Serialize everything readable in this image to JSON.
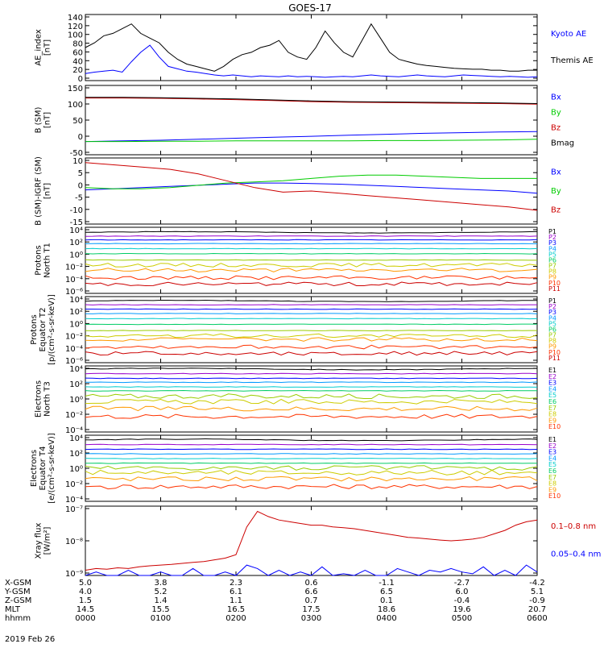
{
  "title": "GOES-17",
  "date_label": "2019 Feb 26",
  "colors": {
    "blue": "#0000ff",
    "black": "#000000",
    "green": "#00cc00",
    "red": "#cc0000",
    "P": [
      "#000000",
      "#9900cc",
      "#0000ff",
      "#0099ff",
      "#00cccc",
      "#00cc66",
      "#99cc00",
      "#cccc00",
      "#ff9900",
      "#ff3300",
      "#cc0000"
    ],
    "E": [
      "#000000",
      "#9900cc",
      "#0000ff",
      "#0099ff",
      "#00cccc",
      "#00cc66",
      "#99cc00",
      "#cccc00",
      "#ff9900",
      "#ff3300"
    ]
  },
  "chart_data": [
    {
      "type": "line",
      "id": "ae",
      "ylabel": [
        "AE_index",
        "[nT]"
      ],
      "ylim": [
        0,
        140
      ],
      "yticks": [
        "140",
        "120",
        "100",
        "80",
        "60",
        "40",
        "20",
        "0"
      ],
      "legend": [
        "Kyoto AE",
        "Themis AE"
      ],
      "series": [
        {
          "name": "Kyoto AE",
          "color": "#0000ff",
          "values": [
            15,
            18,
            20,
            22,
            18,
            40,
            60,
            75,
            50,
            30,
            25,
            20,
            18,
            15,
            12,
            10,
            12,
            10,
            8,
            10,
            9,
            8,
            10,
            8,
            9,
            8,
            7,
            8,
            9,
            8,
            10,
            12,
            10,
            9,
            8,
            10,
            12,
            10,
            9,
            8,
            10,
            12,
            11,
            10,
            9,
            8,
            9,
            8,
            7,
            8
          ]
        },
        {
          "name": "Themis AE",
          "color": "#000000",
          "values": [
            70,
            80,
            95,
            100,
            110,
            120,
            100,
            90,
            80,
            60,
            45,
            35,
            30,
            25,
            20,
            30,
            45,
            55,
            60,
            70,
            75,
            85,
            60,
            50,
            45,
            70,
            105,
            80,
            60,
            50,
            85,
            120,
            90,
            60,
            45,
            40,
            35,
            32,
            30,
            28,
            26,
            25,
            24,
            24,
            22,
            22,
            20,
            20,
            22,
            22
          ]
        }
      ]
    },
    {
      "type": "line",
      "id": "bsm",
      "ylabel": [
        "B (SM)",
        "[nT]"
      ],
      "ylim": [
        -60,
        150
      ],
      "yticks": [
        "150",
        "100",
        "50",
        "0",
        "-50"
      ],
      "legend": [
        "Bx",
        "By",
        "Bz",
        "Bmag"
      ],
      "series": [
        {
          "name": "Bx",
          "color": "#0000ff",
          "values": [
            -20,
            -18,
            -16,
            -13,
            -10,
            -7,
            -4,
            -1,
            2,
            5,
            7,
            9,
            10
          ]
        },
        {
          "name": "By",
          "color": "#00cc00",
          "values": [
            -20,
            -20,
            -19,
            -19,
            -18,
            -18,
            -18,
            -18,
            -17,
            -17,
            -16,
            -15,
            -13
          ]
        },
        {
          "name": "Bz",
          "color": "#cc0000",
          "values": [
            112,
            112,
            111,
            109,
            107,
            104,
            101,
            99,
            98,
            97,
            96,
            95,
            93
          ]
        },
        {
          "name": "Bmag",
          "color": "#000000",
          "values": [
            114,
            114,
            113,
            111,
            109,
            106,
            103,
            101,
            100,
            99,
            98,
            97,
            95
          ]
        }
      ]
    },
    {
      "type": "line",
      "id": "bigrf",
      "ylabel": [
        "B (SM)-IGRF (SM)",
        "[nT]"
      ],
      "ylim": [
        -17,
        12
      ],
      "yticks": [
        "10",
        "5",
        "0",
        "-5",
        "-10",
        "-15"
      ],
      "legend": [
        "Bx",
        "By",
        "Bz"
      ],
      "series": [
        {
          "name": "Bx",
          "color": "#0000ff",
          "values": [
            -2,
            -1.5,
            -1,
            -0.5,
            0,
            0.5,
            1,
            1,
            0.8,
            0.5,
            0,
            -0.5,
            -1,
            -1.5,
            -2,
            -2.5,
            -3.5
          ]
        },
        {
          "name": "By",
          "color": "#00cc00",
          "values": [
            -1,
            -1.5,
            -1.5,
            -1,
            0,
            1,
            1.5,
            2,
            3,
            4,
            4.5,
            4.5,
            4,
            3.5,
            3,
            3,
            3
          ]
        },
        {
          "name": "Bz",
          "color": "#cc0000",
          "values": [
            10,
            9,
            8,
            7,
            5,
            2,
            -1,
            -3,
            -2.5,
            -3.5,
            -4.5,
            -5.5,
            -6.5,
            -7.5,
            -8.5,
            -9.5,
            -11
          ]
        }
      ]
    },
    {
      "type": "line",
      "id": "pn1",
      "log": true,
      "ylabel": [
        "Protons",
        "North T1"
      ],
      "ylim": [
        -6.5,
        4
      ],
      "yticks": [
        "10⁴",
        "10²",
        "10⁰",
        "10⁻²",
        "10⁻⁴",
        "10⁻⁶"
      ],
      "legend": [
        "P1",
        "P2",
        "P3",
        "P4",
        "P5",
        "P6",
        "P7",
        "P8",
        "P9",
        "P10",
        "P11"
      ],
      "levels": [
        3.2,
        2.6,
        2.0,
        1.4,
        0.6,
        -0.2,
        -1.2,
        -2.0,
        -2.8,
        -4.0,
        -5.0
      ]
    },
    {
      "type": "line",
      "id": "pe2",
      "log": true,
      "ylabel": [
        "Protons",
        "Equator T2",
        "[p/(cm²-s-sr-keV)]"
      ],
      "ylim": [
        -6.5,
        4
      ],
      "yticks": [
        "10⁴",
        "10²",
        "10⁰",
        "10⁻²",
        "10⁻⁴",
        "10⁻⁶"
      ],
      "legend": [
        "P1",
        "P2",
        "P3",
        "P4",
        "P5",
        "P6",
        "P7",
        "P8",
        "P9",
        "P10",
        "P11"
      ],
      "levels": [
        3.3,
        2.7,
        2.0,
        1.3,
        0.5,
        -0.4,
        -1.4,
        -2.2,
        -2.8,
        -4.0,
        -5.0
      ]
    },
    {
      "type": "line",
      "id": "en3",
      "log": true,
      "ylabel": [
        "Electrons",
        "North T3"
      ],
      "ylim": [
        -4.5,
        4
      ],
      "yticks": [
        "10⁴",
        "10²",
        "10⁰",
        "10⁻²",
        "10⁻⁴"
      ],
      "legend": [
        "E1",
        "E2",
        "E3",
        "E4",
        "E5",
        "E6",
        "E7",
        "E8",
        "E9",
        "E10"
      ],
      "levels": [
        3.6,
        3.0,
        2.4,
        1.9,
        1.3,
        0.8,
        0.1,
        -0.6,
        -1.5,
        -2.5
      ]
    },
    {
      "type": "line",
      "id": "ee4",
      "log": true,
      "ylabel": [
        "Electrons",
        "Equator T4",
        "[e/(cm²-s-sr-keV)]"
      ],
      "ylim": [
        -4.5,
        4
      ],
      "yticks": [
        "10⁴",
        "10²",
        "10⁰",
        "10⁻²",
        "10⁻⁴"
      ],
      "legend": [
        "E1",
        "E2",
        "E3",
        "E4",
        "E5",
        "E6",
        "E7",
        "E8",
        "E9",
        "E10"
      ],
      "levels": [
        3.4,
        2.8,
        2.2,
        1.6,
        1.0,
        0.4,
        -0.2,
        -0.8,
        -1.6,
        -2.6
      ]
    },
    {
      "type": "line",
      "id": "xray",
      "log": true,
      "ylabel": [
        "Xray flux",
        "[W/m²]"
      ],
      "ylim": [
        -9,
        -7
      ],
      "yticks": [
        "10⁻⁷",
        "10⁻⁸",
        "10⁻⁹"
      ],
      "legend": [
        "0.1–0.8 nm",
        "0.05–0.4 nm"
      ],
      "series": [
        {
          "name": "0.1–0.8 nm",
          "color": "#cc0000",
          "values": [
            -8.85,
            -8.8,
            -8.82,
            -8.78,
            -8.8,
            -8.75,
            -8.72,
            -8.7,
            -8.68,
            -8.65,
            -8.62,
            -8.6,
            -8.55,
            -8.5,
            -8.4,
            -7.6,
            -7.15,
            -7.3,
            -7.4,
            -7.45,
            -7.5,
            -7.55,
            -7.55,
            -7.6,
            -7.62,
            -7.65,
            -7.7,
            -7.75,
            -7.8,
            -7.85,
            -7.9,
            -7.92,
            -7.95,
            -7.98,
            -8.0,
            -7.98,
            -7.95,
            -7.9,
            -7.8,
            -7.7,
            -7.55,
            -7.45,
            -7.4
          ]
        },
        {
          "name": "0.05–0.4 nm",
          "color": "#0000ff",
          "values": [
            -9.0,
            -8.9,
            -9.0,
            -9.0,
            -8.85,
            -9.0,
            -9.0,
            -8.9,
            -9.0,
            -9.0,
            -8.8,
            -9.0,
            -9.0,
            -8.9,
            -9.0,
            -8.7,
            -8.8,
            -9.0,
            -8.85,
            -9.0,
            -8.9,
            -9.0,
            -8.75,
            -9.0,
            -8.95,
            -9.0,
            -8.85,
            -9.0,
            -9.0,
            -8.8,
            -8.9,
            -9.0,
            -8.85,
            -8.9,
            -8.8,
            -8.9,
            -8.95,
            -8.75,
            -9.0,
            -8.85,
            -9.0,
            -8.7,
            -8.9
          ]
        }
      ]
    }
  ],
  "xaxis": {
    "rows": [
      {
        "label": "X-GSM",
        "values": [
          "5.0",
          "3.8",
          "2.3",
          "0.6",
          "-1.1",
          "-2.7",
          "-4.2"
        ]
      },
      {
        "label": "Y-GSM",
        "values": [
          "4.0",
          "5.2",
          "6.1",
          "6.6",
          "6.5",
          "6.0",
          "5.1"
        ]
      },
      {
        "label": "Z-GSM",
        "values": [
          "1.5",
          "1.4",
          "1.1",
          "0.7",
          "0.1",
          "-0.4",
          "-0.9"
        ]
      },
      {
        "label": "MLT",
        "values": [
          "14.5",
          "15.5",
          "16.5",
          "17.5",
          "18.6",
          "19.6",
          "20.7"
        ]
      },
      {
        "label": "hhmm",
        "values": [
          "0000",
          "0100",
          "0200",
          "0300",
          "0400",
          "0500",
          "0600"
        ]
      }
    ]
  }
}
